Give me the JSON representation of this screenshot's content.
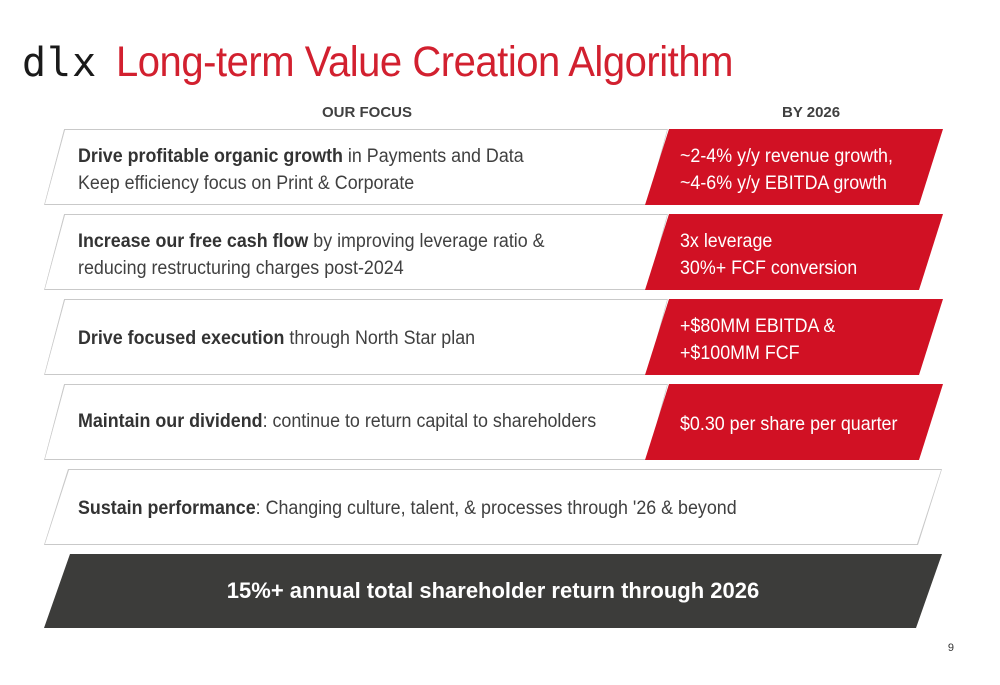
{
  "header": {
    "logo": "dlx",
    "title": "Long-term Value Creation Algorithm"
  },
  "columns": {
    "focus": "OUR FOCUS",
    "target": "BY 2026"
  },
  "rows": [
    {
      "bold": "Drive profitable organic growth",
      "rest": " in Payments and Data",
      "line2": "Keep efficiency focus on Print & Corporate",
      "target_line1": "~2-4% y/y revenue growth,",
      "target_line2": "~4-6% y/y EBITDA growth"
    },
    {
      "bold": "Increase our free cash flow",
      "rest": " by improving leverage ratio &",
      "line2": "reducing restructuring charges post-2024",
      "target_line1": "3x leverage",
      "target_line2": "30%+ FCF conversion"
    },
    {
      "bold": "Drive focused execution",
      "rest": " through North Star plan",
      "target_line1": "+$80MM EBITDA &",
      "target_line2": "+$100MM FCF"
    },
    {
      "bold": "Maintain our dividend",
      "rest": ": continue to return capital to shareholders",
      "target_line1": "$0.30 per share per quarter"
    }
  ],
  "sustain": {
    "bold": "Sustain performance",
    "rest": ": Changing culture, talent, & processes through '26 & beyond"
  },
  "footer_banner": "15%+ annual total shareholder return through 2026",
  "page_number": "9"
}
